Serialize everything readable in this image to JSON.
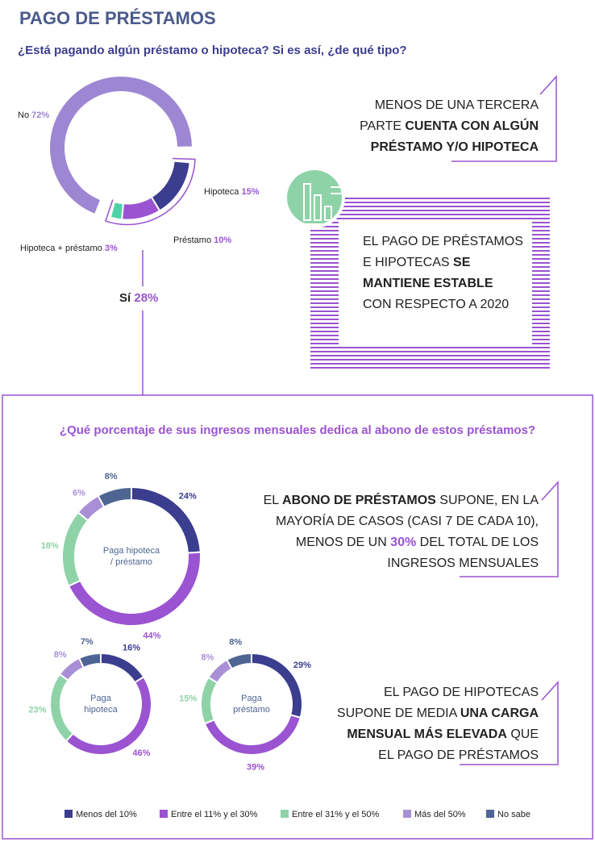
{
  "header": {
    "title": "PAGO DE PRÉSTAMOS",
    "question": "¿Está pagando algún préstamo o hipoteca? Si es así, ¿de qué tipo?"
  },
  "section_question": "¿Qué porcentaje de sus ingresos mensuales dedica al abono de estos préstamos?",
  "callouts": [
    {
      "parts": [
        {
          "text": "MENOS DE UNA TERCERA PARTE ",
          "style": "normal"
        },
        {
          "text": "CUENTA CON ALGÚN PRÉSTAMO Y/O HIPOTECA",
          "style": "bold"
        }
      ]
    },
    {
      "parts": [
        {
          "text": "EL PAGO DE PRÉSTAMOS E HIPOTECAS ",
          "style": "normal"
        },
        {
          "text": "SE MANTIENE ESTABLE",
          "style": "bold"
        },
        {
          "text": " CON RESPECTO A 2020",
          "style": "normal"
        }
      ]
    },
    {
      "parts": [
        {
          "text": "EL ",
          "style": "normal"
        },
        {
          "text": "ABONO DE PRÉSTAMOS",
          "style": "bold"
        },
        {
          "text": " SUPONE, EN LA MAYORÍA DE CASOS (CASI 7 DE CADA 10), MENOS DE UN ",
          "style": "normal"
        },
        {
          "text": "30%",
          "style": "accent"
        },
        {
          "text": " DEL TOTAL DE LOS INGRESOS MENSUALES",
          "style": "normal"
        }
      ]
    },
    {
      "parts": [
        {
          "text": "EL PAGO DE HIPOTECAS SUPONE DE MEDIA ",
          "style": "normal"
        },
        {
          "text": "UNA CARGA MENSUAL MÁS ELEVADA",
          "style": "bold"
        },
        {
          "text": " QUE EL PAGO DE PRÉSTAMOS",
          "style": "normal"
        }
      ]
    }
  ],
  "legend": {
    "categories": [
      "Menos del 10%",
      "Entre el 11% y el 30%",
      "Entre el 31% y el 50%",
      "Más del 50%",
      "No sabe"
    ],
    "colors": [
      "#3b3d8f",
      "#9a53d1",
      "#8ed3a8",
      "#a98fd6",
      "#4e6593"
    ]
  },
  "chart_data": [
    {
      "type": "donut",
      "categories": [
        "No",
        "Hipoteca",
        "Préstamo",
        "Hipoteca + préstamo"
      ],
      "values": [
        72,
        15,
        10,
        3
      ],
      "value_labels": [
        "72%",
        "15%",
        "10%",
        "3%"
      ],
      "colors": [
        "#9d87d3",
        "#3b3d8f",
        "#9a53d1",
        "#4fd1a6"
      ],
      "group": {
        "name": "Sí",
        "value": 28,
        "value_label": "28%"
      }
    },
    {
      "type": "donut",
      "center_label": [
        "Paga hipoteca",
        "/ préstamo"
      ],
      "values": [
        24,
        44,
        18,
        6,
        8
      ],
      "value_labels": [
        "24%",
        "44%",
        "18%",
        "6%",
        "8%"
      ]
    },
    {
      "type": "donut",
      "center_label": [
        "Paga",
        "hipoteca"
      ],
      "values": [
        16,
        46,
        23,
        8,
        7
      ],
      "value_labels": [
        "16%",
        "46%",
        "23%",
        "8%",
        "7%"
      ]
    },
    {
      "type": "donut",
      "center_label": [
        "Paga",
        "préstamo"
      ],
      "values": [
        29,
        39,
        15,
        8,
        8
      ],
      "value_labels": [
        "29%",
        "39%",
        "15%",
        "8%",
        "8%"
      ]
    }
  ]
}
